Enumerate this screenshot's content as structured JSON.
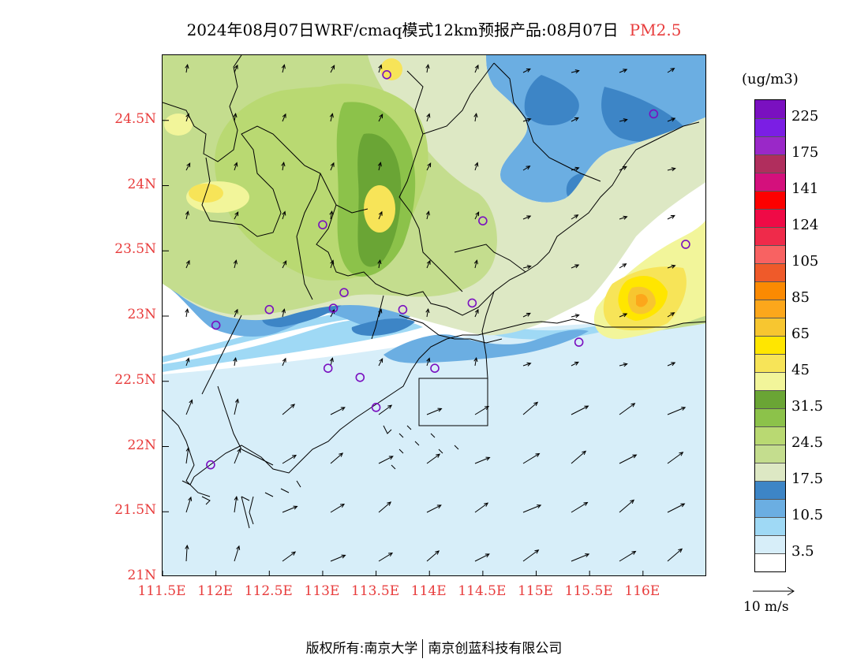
{
  "title": {
    "main": "2024年08月07日WRF/cmaq模式12km预报产品:08月07日",
    "pollutant": "PM2.5"
  },
  "units": "(ug/m3)",
  "colorbar": {
    "colors": [
      "#ffffff",
      "#d7eef9",
      "#9fd9f5",
      "#6baee2",
      "#3d85c6",
      "#dde8c4",
      "#c4dd8e",
      "#b9d972",
      "#8cc24a",
      "#6aa535",
      "#f2f59a",
      "#f7e458",
      "#ffe600",
      "#f7c630",
      "#fca71b",
      "#fb8a02",
      "#ef5a2a",
      "#f86262",
      "#ef2a4a",
      "#ef0a46",
      "#fd0000",
      "#d4107c",
      "#b02e5d",
      "#9a28c8",
      "#7b1ee4",
      "#7a10c0"
    ],
    "labels": [
      "3.5",
      "10.5",
      "17.5",
      "24.5",
      "31.5",
      "45",
      "65",
      "85",
      "105",
      "124",
      "141",
      "175",
      "225"
    ]
  },
  "map": {
    "lat_labels": [
      "24.5N",
      "24N",
      "23.5N",
      "23N",
      "22.5N",
      "22N",
      "21.5N",
      "21N"
    ],
    "lon_labels": [
      "111.5E",
      "112E",
      "112.5E",
      "113E",
      "113.5E",
      "114E",
      "114.5E",
      "115E",
      "115.5E",
      "116E"
    ],
    "lat_values": [
      24.5,
      24.0,
      23.5,
      23.0,
      22.5,
      22.0,
      21.5,
      21.0
    ],
    "lon_values": [
      111.5,
      112.0,
      112.5,
      113.0,
      113.5,
      114.0,
      114.5,
      115.0,
      115.5,
      116.0
    ],
    "lat_range": [
      21.0,
      25.0
    ],
    "lon_range": [
      111.5,
      116.6
    ],
    "stations": [
      {
        "lon": 113.6,
        "lat": 24.85
      },
      {
        "lon": 116.1,
        "lat": 24.55
      },
      {
        "lon": 113.0,
        "lat": 23.7
      },
      {
        "lon": 114.5,
        "lat": 23.73
      },
      {
        "lon": 116.4,
        "lat": 23.55
      },
      {
        "lon": 112.5,
        "lat": 23.05
      },
      {
        "lon": 113.2,
        "lat": 23.18
      },
      {
        "lon": 113.1,
        "lat": 23.06
      },
      {
        "lon": 113.75,
        "lat": 23.05
      },
      {
        "lon": 114.4,
        "lat": 23.1
      },
      {
        "lon": 112.0,
        "lat": 22.93
      },
      {
        "lon": 113.05,
        "lat": 22.6
      },
      {
        "lon": 113.35,
        "lat": 22.53
      },
      {
        "lon": 113.5,
        "lat": 22.3
      },
      {
        "lon": 114.05,
        "lat": 22.6
      },
      {
        "lon": 115.4,
        "lat": 22.8
      },
      {
        "lon": 111.95,
        "lat": 21.86
      }
    ]
  },
  "reference_vector_label": "10 m/s",
  "footer": {
    "left": "版权所有:南京大学",
    "right": "南京创蓝科技有限公司"
  }
}
